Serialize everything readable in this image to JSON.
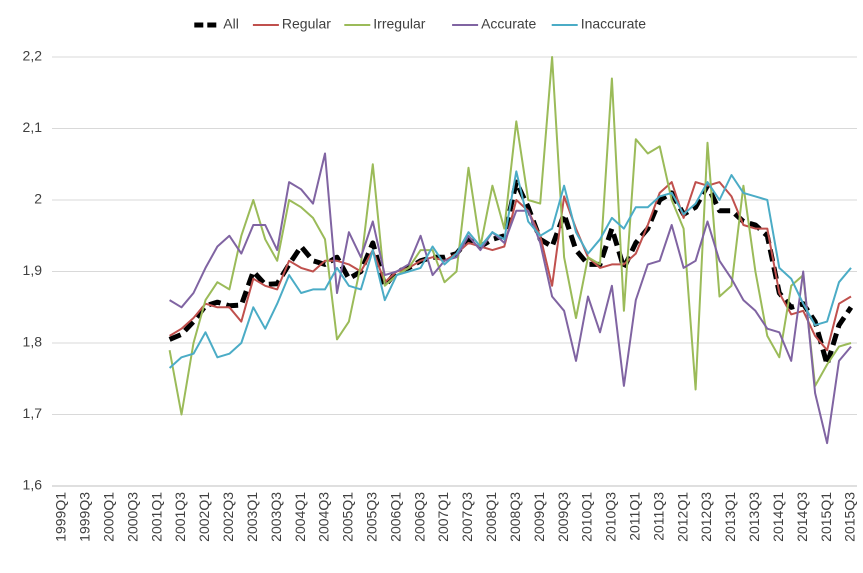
{
  "chart_data": {
    "type": "line",
    "categories": [
      "1999Q1",
      null,
      "1999Q3",
      null,
      "2000Q1",
      null,
      "2000Q3",
      null,
      "2001Q1",
      null,
      "2001Q3",
      null,
      "2002Q1",
      null,
      "2002Q3",
      null,
      "2003Q1",
      null,
      "2003Q3",
      null,
      "2004Q1",
      null,
      "2004Q3",
      null,
      "2005Q1",
      null,
      "2005Q3",
      null,
      "2006Q1",
      null,
      "2006Q3",
      null,
      "2007Q1",
      null,
      "2007Q3",
      null,
      "2008Q1",
      null,
      "2008Q3",
      null,
      "2009Q1",
      null,
      "2009Q3",
      null,
      "2010Q1",
      null,
      "2010Q3",
      null,
      "2011Q1",
      null,
      "2011Q3",
      null,
      "2012Q1",
      null,
      "2012Q3",
      null,
      "2013Q1",
      null,
      "2013Q3",
      null,
      "2014Q1",
      null,
      "2014Q3",
      null,
      "2015Q1",
      null,
      "2015Q3"
    ],
    "series": [
      {
        "name": "All",
        "color": "#000000",
        "dashed": true,
        "values": [
          null,
          null,
          null,
          null,
          null,
          null,
          null,
          null,
          null,
          1.805,
          1.812,
          1.83,
          1.852,
          1.857,
          1.852,
          1.853,
          1.9,
          1.882,
          1.883,
          1.91,
          1.935,
          1.915,
          1.91,
          1.92,
          1.89,
          1.9,
          1.94,
          1.88,
          1.9,
          1.905,
          1.915,
          1.92,
          1.92,
          1.925,
          1.945,
          1.935,
          1.945,
          1.95,
          2.025,
          1.99,
          1.945,
          1.935,
          1.98,
          1.93,
          1.91,
          1.91,
          1.96,
          1.905,
          1.94,
          1.96,
          2.0,
          2.01,
          1.98,
          1.99,
          2.02,
          1.985,
          1.985,
          1.97,
          1.965,
          1.95,
          1.87,
          1.85,
          1.855,
          1.83,
          1.77,
          1.825,
          1.85
        ]
      },
      {
        "name": "Regular",
        "color": "#c0504d",
        "values": [
          null,
          null,
          null,
          null,
          null,
          null,
          null,
          null,
          null,
          1.81,
          1.82,
          1.835,
          1.855,
          1.85,
          1.85,
          1.83,
          1.89,
          1.88,
          1.875,
          1.915,
          1.905,
          1.9,
          1.915,
          1.915,
          1.91,
          1.9,
          1.93,
          1.885,
          1.9,
          1.905,
          1.915,
          1.92,
          1.915,
          1.925,
          1.94,
          1.935,
          1.93,
          1.935,
          2.0,
          1.985,
          1.95,
          1.88,
          2.005,
          1.96,
          1.92,
          1.905,
          1.91,
          1.91,
          1.925,
          1.965,
          2.01,
          2.025,
          1.975,
          2.025,
          2.02,
          2.025,
          2.005,
          1.965,
          1.96,
          1.96,
          1.87,
          1.84,
          1.845,
          1.81,
          1.79,
          1.855,
          1.865
        ]
      },
      {
        "name": "Irregular",
        "color": "#9bbb59",
        "values": [
          null,
          null,
          null,
          null,
          null,
          null,
          null,
          null,
          null,
          1.79,
          1.7,
          1.8,
          1.86,
          1.885,
          1.875,
          1.95,
          2.0,
          1.945,
          1.915,
          2.0,
          1.99,
          1.975,
          1.945,
          1.805,
          1.83,
          1.91,
          2.05,
          1.88,
          1.895,
          1.905,
          1.93,
          1.93,
          1.885,
          1.9,
          2.045,
          1.935,
          2.02,
          1.96,
          2.11,
          2.0,
          1.995,
          2.2,
          1.92,
          1.835,
          1.92,
          1.91,
          2.17,
          1.845,
          2.085,
          2.065,
          2.075,
          2.0,
          1.96,
          1.735,
          2.08,
          1.865,
          1.88,
          2.02,
          1.9,
          1.81,
          1.78,
          1.88,
          1.895,
          1.74,
          1.77,
          1.795,
          1.8
        ]
      },
      {
        "name": "Accurate",
        "color": "#8064a2",
        "values": [
          null,
          null,
          null,
          null,
          null,
          null,
          null,
          null,
          null,
          1.86,
          1.85,
          1.87,
          1.905,
          1.935,
          1.95,
          1.925,
          1.965,
          1.965,
          1.93,
          2.025,
          2.015,
          1.995,
          2.065,
          1.87,
          1.955,
          1.92,
          1.97,
          1.895,
          1.9,
          1.91,
          1.95,
          1.895,
          1.915,
          1.92,
          1.95,
          1.93,
          1.955,
          1.94,
          1.985,
          1.985,
          1.94,
          1.865,
          1.845,
          1.775,
          1.865,
          1.815,
          1.88,
          1.74,
          1.86,
          1.91,
          1.915,
          1.965,
          1.905,
          1.915,
          1.97,
          1.915,
          1.89,
          1.86,
          1.845,
          1.82,
          1.815,
          1.775,
          1.9,
          1.73,
          1.66,
          1.775,
          1.795
        ]
      },
      {
        "name": "Inaccurate",
        "color": "#4bacc6",
        "values": [
          null,
          null,
          null,
          null,
          null,
          null,
          null,
          null,
          null,
          1.765,
          1.78,
          1.785,
          1.815,
          1.78,
          1.785,
          1.8,
          1.85,
          1.82,
          1.855,
          1.895,
          1.87,
          1.875,
          1.875,
          1.905,
          1.88,
          1.875,
          1.93,
          1.86,
          1.895,
          1.9,
          1.905,
          1.935,
          1.91,
          1.925,
          1.955,
          1.935,
          1.955,
          1.945,
          2.04,
          1.97,
          1.95,
          1.96,
          2.02,
          1.955,
          1.925,
          1.945,
          1.975,
          1.96,
          1.99,
          1.99,
          2.005,
          2.01,
          1.98,
          1.995,
          2.025,
          2.0,
          2.035,
          2.01,
          2.005,
          2.0,
          1.905,
          1.89,
          1.855,
          1.825,
          1.83,
          1.885,
          1.905
        ]
      }
    ],
    "ylim": [
      1.6,
      2.2
    ],
    "yticks": [
      {
        "value": 1.6,
        "label": "1,6"
      },
      {
        "value": 1.7,
        "label": "1,7"
      },
      {
        "value": 1.8,
        "label": "1,8"
      },
      {
        "value": 1.9,
        "label": "1,9"
      },
      2,
      {
        "value": 2.1,
        "label": "2,1"
      },
      {
        "value": 2.2,
        "label": "2,2"
      }
    ],
    "grid": true,
    "legend": "top"
  }
}
